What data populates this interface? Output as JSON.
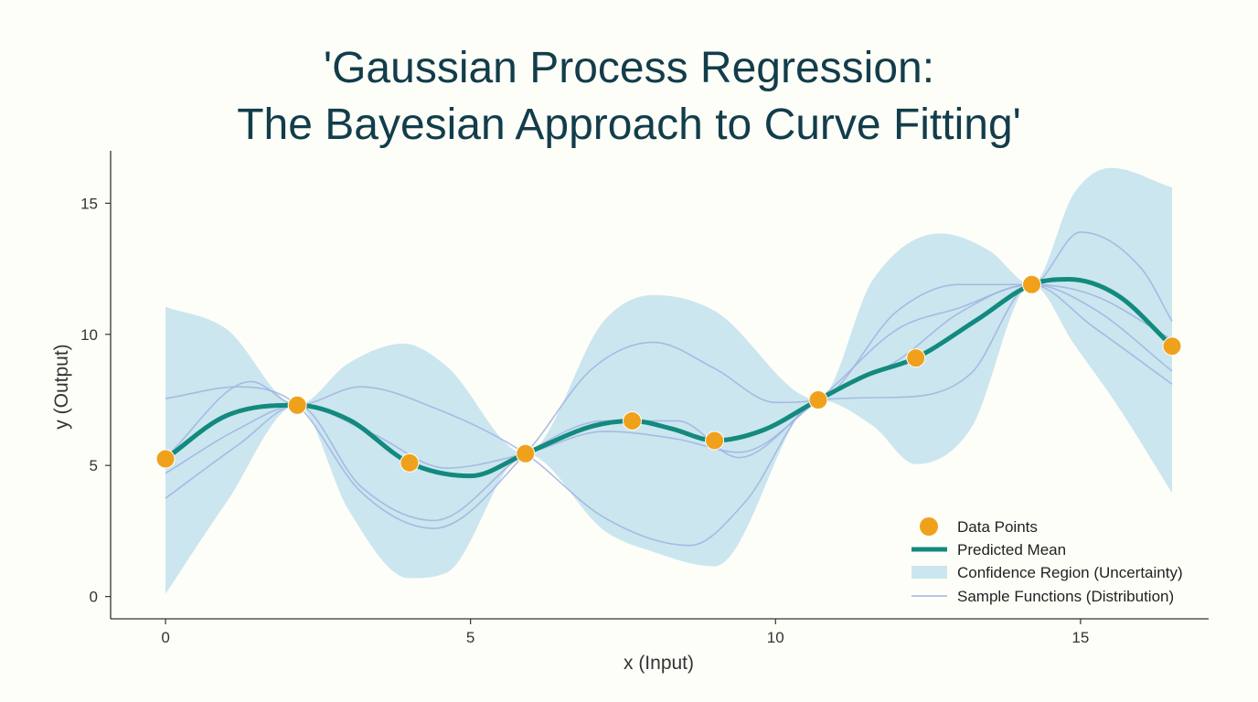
{
  "chart_data": {
    "type": "line",
    "title": [
      "'Gaussian Process Regression:",
      "The Bayesian Approach to Curve Fitting'"
    ],
    "xlabel": "x (Input)",
    "ylabel": "y (Output)",
    "xlim": [
      -0.9,
      17.1
    ],
    "ylim": [
      -0.85,
      17
    ],
    "xticks": [
      0,
      5,
      10,
      15
    ],
    "yticks": [
      0,
      5,
      10,
      15
    ],
    "grid": false,
    "legend_position": "bottom-right",
    "legend": [
      "Data Points",
      "Predicted Mean",
      "Confidence Region (Uncertainty)",
      "Sample Functions (Distribution)"
    ],
    "colors": {
      "data_points": "#f0a11c",
      "mean": "#138a7e",
      "confidence": "#cbe6ef",
      "samples": "#9fb3e2",
      "axis": "#333333",
      "title": "#123d4a"
    },
    "data_points": {
      "x": [
        0,
        2.16,
        4.0,
        5.9,
        7.65,
        9.0,
        10.7,
        12.3,
        14.2,
        16.5
      ],
      "y": [
        5.25,
        7.3,
        5.1,
        5.45,
        6.7,
        5.95,
        7.5,
        9.1,
        11.9,
        9.55
      ]
    },
    "mean": {
      "x": [
        0,
        1,
        2.16,
        3,
        4,
        5,
        5.9,
        7,
        7.65,
        8.3,
        9,
        9.8,
        10.7,
        11.5,
        12.3,
        13.3,
        14.2,
        14.8,
        15.6,
        16.5
      ],
      "y": [
        5.25,
        6.9,
        7.3,
        6.75,
        5.1,
        4.6,
        5.45,
        6.5,
        6.7,
        6.4,
        5.95,
        6.35,
        7.5,
        8.45,
        9.1,
        10.55,
        11.9,
        12.1,
        11.5,
        9.55
      ]
    },
    "confidence_upper": {
      "x": [
        0,
        1,
        2.16,
        3,
        3.9,
        4.6,
        5.9,
        7.2,
        8,
        9,
        10.7,
        11.6,
        12.7,
        13.5,
        14.2,
        14.9,
        15.5,
        16.5
      ],
      "y": [
        11.05,
        10.2,
        7.3,
        8.9,
        9.65,
        8.8,
        5.45,
        10.55,
        11.5,
        10.9,
        7.5,
        12.1,
        13.85,
        13.2,
        11.9,
        15.4,
        16.35,
        15.6
      ]
    },
    "confidence_lower": {
      "x": [
        0,
        1,
        2.16,
        3,
        4,
        4.6,
        5.9,
        7.2,
        8,
        9,
        10.7,
        11.6,
        12.3,
        13.2,
        14.2,
        14.9,
        15.6,
        16.5
      ],
      "y": [
        0.1,
        3.6,
        7.3,
        3.3,
        0.7,
        0.9,
        5.45,
        2.5,
        1.7,
        1.15,
        7.5,
        6.5,
        5.05,
        6.4,
        11.9,
        9.6,
        7.3,
        3.95
      ]
    },
    "samples": [
      {
        "x": [
          0,
          1.2,
          2.16,
          3.2,
          4.4,
          5.9,
          7,
          8,
          9,
          10,
          10.7,
          12,
          13,
          14.2,
          15,
          16,
          16.5
        ],
        "y": [
          7.55,
          8.0,
          7.3,
          4.0,
          2.6,
          5.45,
          8.7,
          9.7,
          8.7,
          7.4,
          7.5,
          10.9,
          11.9,
          11.9,
          13.9,
          12.5,
          10.5
        ]
      },
      {
        "x": [
          0,
          1.4,
          2.16,
          3.2,
          4.4,
          5.9,
          7.2,
          8.6,
          9.5,
          10.7,
          12,
          13.2,
          14.2,
          15.2,
          16.5
        ],
        "y": [
          5.3,
          8.2,
          7.3,
          8.0,
          7.2,
          5.45,
          3.0,
          1.95,
          3.6,
          7.5,
          7.6,
          8.5,
          11.9,
          11.0,
          8.6
        ]
      },
      {
        "x": [
          0,
          1.2,
          2.16,
          3.2,
          4.4,
          5.9,
          7.2,
          8.4,
          9.4,
          10.7,
          12,
          13,
          14.2,
          15.2,
          16.5
        ],
        "y": [
          3.75,
          5.8,
          7.3,
          4.2,
          2.9,
          5.45,
          6.7,
          6.7,
          5.3,
          7.5,
          9.0,
          10.8,
          11.9,
          10.3,
          8.1
        ]
      },
      {
        "x": [
          0,
          1.2,
          2.16,
          3.4,
          4.6,
          5.9,
          7.2,
          8.4,
          9.4,
          10.7,
          12,
          13,
          14.2,
          15.2,
          16.5
        ],
        "y": [
          4.7,
          6.4,
          7.3,
          6.2,
          4.9,
          5.45,
          6.3,
          6.0,
          5.5,
          7.5,
          10.2,
          11.0,
          11.9,
          11.5,
          9.8
        ]
      }
    ]
  }
}
